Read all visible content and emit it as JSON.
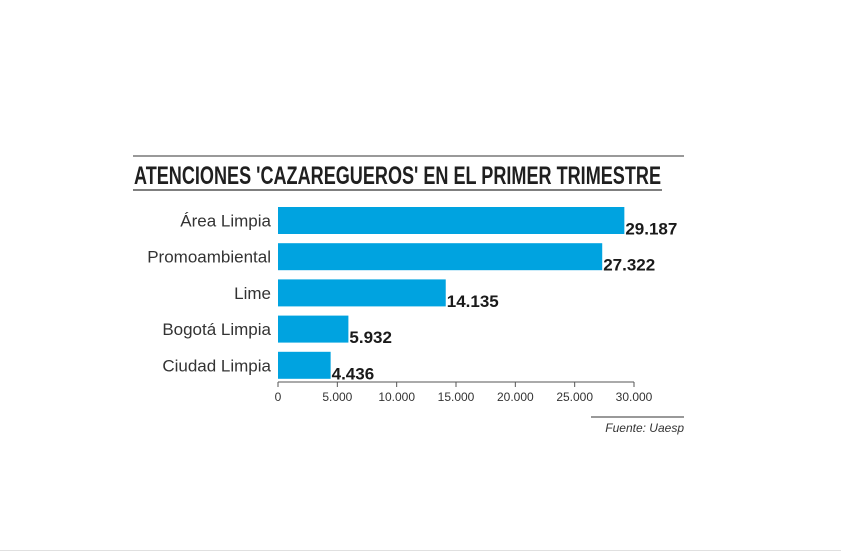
{
  "chart_data": {
    "type": "bar",
    "orientation": "horizontal",
    "title": "ATENCIONES 'CAZAREGUEROS' EN EL PRIMER TRIMESTRE",
    "categories": [
      "Área Limpia",
      "Promoambiental",
      "Lime",
      "Bogotá Limpia",
      "Ciudad Limpia"
    ],
    "values": [
      29187,
      27322,
      14135,
      5932,
      4436
    ],
    "value_labels": [
      "29.187",
      "27.322",
      "14.135",
      "5.932",
      "4.436"
    ],
    "xlim": [
      0,
      30000
    ],
    "ticks": [
      0,
      5000,
      10000,
      15000,
      20000,
      25000,
      30000
    ],
    "tick_labels": [
      "0",
      "5.000",
      "10.000",
      "15.000",
      "20.000",
      "25.000",
      "30.000"
    ],
    "source": "Fuente: Uaesp",
    "bar_color": "#00a3e0",
    "grid": false
  }
}
